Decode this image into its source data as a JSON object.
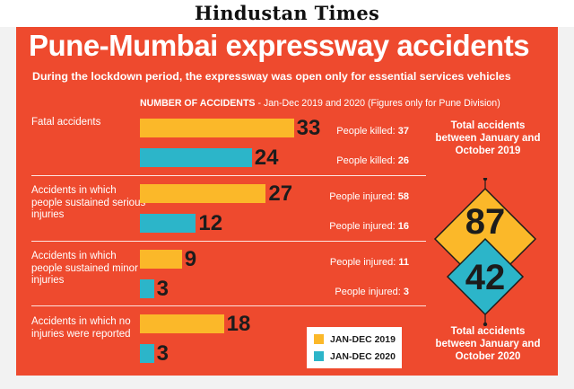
{
  "masthead": "Hindustan Times",
  "title": "Pune-Mumbai expressway accidents",
  "subtitle": "During the lockdown period, the expressway was open only for essential services vehicles",
  "chart_header": {
    "main": "NUMBER OF ACCIDENTS",
    "rest": " - Jan-Dec 2019 and 2020 (Figures only for Pune Division)"
  },
  "colors": {
    "series_2019": "#fbb829",
    "series_2020": "#2cb5c9",
    "background": "#ee4a2e"
  },
  "chart_data": {
    "type": "bar",
    "orientation": "horizontal",
    "categories": [
      "Fatal accidents",
      "Accidents in which people sustained serious injuries",
      "Accidents in which people sustained minor injuries",
      "Accidents in which no injuries were reported"
    ],
    "series": [
      {
        "name": "JAN-DEC 2019",
        "values": [
          33,
          27,
          9,
          18
        ]
      },
      {
        "name": "JAN-DEC 2020",
        "values": [
          24,
          12,
          3,
          3
        ]
      }
    ],
    "annotations": [
      {
        "label": "People killed:",
        "v2019": "37",
        "v2020": "26"
      },
      {
        "label": "People injured:",
        "v2019": "58",
        "v2020": "16"
      },
      {
        "label": "People injured:",
        "v2019": "11",
        "v2020": "3"
      }
    ],
    "totals": [
      {
        "text": "Total accidents between January and October 2019",
        "value": "87"
      },
      {
        "text": "Total accidents between January and October 2020",
        "value": "42"
      }
    ],
    "legend_position": "bottom-right",
    "grid": false
  }
}
